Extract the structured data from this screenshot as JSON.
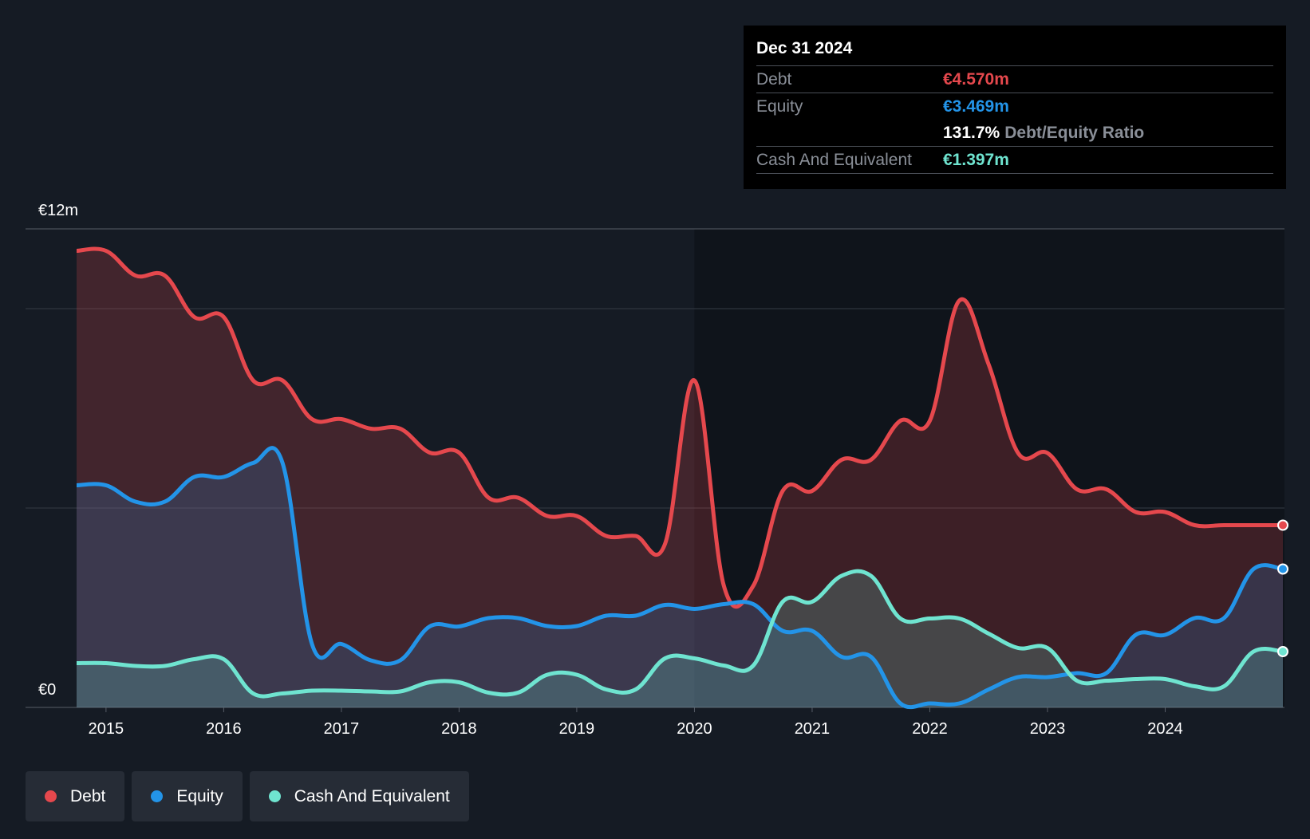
{
  "tooltip": {
    "date": "Dec 31 2024",
    "rows": [
      {
        "name": "Debt",
        "value": "€4.570m",
        "color": "#e5484d"
      },
      {
        "name": "Equity",
        "value": "€3.469m",
        "color": "#2394e8"
      },
      {
        "ratio_value": "131.7%",
        "ratio_label": "Debt/Equity Ratio"
      },
      {
        "name": "Cash And Equivalent",
        "value": "€1.397m",
        "color": "#6fe4d0"
      }
    ]
  },
  "legend": [
    {
      "label": "Debt",
      "color": "#e5484d"
    },
    {
      "label": "Equity",
      "color": "#2394e8"
    },
    {
      "label": "Cash And Equivalent",
      "color": "#6fe4d0"
    }
  ],
  "chart_data": {
    "type": "area",
    "y_axis_labels": [
      "€12m",
      "€0"
    ],
    "ylim": [
      0,
      12
    ],
    "xlim": [
      2014.75,
      2025.0
    ],
    "x_ticks": [
      2015,
      2016,
      2017,
      2018,
      2019,
      2020,
      2021,
      2022,
      2023,
      2024
    ],
    "grid": true,
    "series": [
      {
        "name": "Debt",
        "color": "#e5484d",
        "points": [
          [
            2014.75,
            11.45
          ],
          [
            2015.0,
            11.45
          ],
          [
            2015.25,
            10.83
          ],
          [
            2015.5,
            10.83
          ],
          [
            2015.75,
            9.79
          ],
          [
            2016.0,
            9.79
          ],
          [
            2016.25,
            8.2
          ],
          [
            2016.5,
            8.2
          ],
          [
            2016.75,
            7.23
          ],
          [
            2017.0,
            7.23
          ],
          [
            2017.25,
            6.99
          ],
          [
            2017.5,
            6.99
          ],
          [
            2017.75,
            6.39
          ],
          [
            2018.0,
            6.39
          ],
          [
            2018.25,
            5.26
          ],
          [
            2018.5,
            5.26
          ],
          [
            2018.75,
            4.8
          ],
          [
            2019.0,
            4.8
          ],
          [
            2019.25,
            4.3
          ],
          [
            2019.5,
            4.3
          ],
          [
            2019.75,
            4.1
          ],
          [
            2020.0,
            8.2
          ],
          [
            2020.25,
            3.05
          ],
          [
            2020.5,
            3.05
          ],
          [
            2020.75,
            5.43
          ],
          [
            2021.0,
            5.43
          ],
          [
            2021.25,
            6.21
          ],
          [
            2021.5,
            6.21
          ],
          [
            2021.75,
            7.19
          ],
          [
            2022.0,
            7.19
          ],
          [
            2022.25,
            10.2
          ],
          [
            2022.5,
            8.6
          ],
          [
            2022.75,
            6.38
          ],
          [
            2023.0,
            6.38
          ],
          [
            2023.25,
            5.47
          ],
          [
            2023.5,
            5.47
          ],
          [
            2023.75,
            4.9
          ],
          [
            2024.0,
            4.9
          ],
          [
            2024.25,
            4.57
          ],
          [
            2024.5,
            4.57
          ],
          [
            2024.75,
            4.57
          ],
          [
            2025.0,
            4.57
          ]
        ]
      },
      {
        "name": "Equity",
        "color": "#2394e8",
        "points": [
          [
            2014.75,
            5.57
          ],
          [
            2015.0,
            5.57
          ],
          [
            2015.25,
            5.16
          ],
          [
            2015.5,
            5.16
          ],
          [
            2015.75,
            5.78
          ],
          [
            2016.0,
            5.78
          ],
          [
            2016.25,
            6.13
          ],
          [
            2016.5,
            6.13
          ],
          [
            2016.75,
            1.59
          ],
          [
            2017.0,
            1.59
          ],
          [
            2017.25,
            1.18
          ],
          [
            2017.5,
            1.18
          ],
          [
            2017.75,
            2.03
          ],
          [
            2018.0,
            2.03
          ],
          [
            2018.25,
            2.24
          ],
          [
            2018.5,
            2.24
          ],
          [
            2018.75,
            2.04
          ],
          [
            2019.0,
            2.04
          ],
          [
            2019.25,
            2.3
          ],
          [
            2019.5,
            2.3
          ],
          [
            2019.75,
            2.57
          ],
          [
            2020.0,
            2.47
          ],
          [
            2020.25,
            2.59
          ],
          [
            2020.5,
            2.59
          ],
          [
            2020.75,
            1.92
          ],
          [
            2021.0,
            1.92
          ],
          [
            2021.25,
            1.27
          ],
          [
            2021.5,
            1.27
          ],
          [
            2021.75,
            0.1
          ],
          [
            2022.0,
            0.1
          ],
          [
            2022.25,
            0.1
          ],
          [
            2022.5,
            0.45
          ],
          [
            2022.75,
            0.76
          ],
          [
            2023.0,
            0.76
          ],
          [
            2023.25,
            0.86
          ],
          [
            2023.5,
            0.86
          ],
          [
            2023.75,
            1.82
          ],
          [
            2024.0,
            1.82
          ],
          [
            2024.25,
            2.24
          ],
          [
            2024.5,
            2.24
          ],
          [
            2024.75,
            3.47
          ],
          [
            2025.0,
            3.47
          ]
        ]
      },
      {
        "name": "Cash And Equivalent",
        "color": "#6fe4d0",
        "points": [
          [
            2014.75,
            1.11
          ],
          [
            2015.0,
            1.11
          ],
          [
            2015.25,
            1.04
          ],
          [
            2015.5,
            1.04
          ],
          [
            2015.75,
            1.21
          ],
          [
            2016.0,
            1.21
          ],
          [
            2016.25,
            0.35
          ],
          [
            2016.5,
            0.35
          ],
          [
            2016.75,
            0.42
          ],
          [
            2017.0,
            0.42
          ],
          [
            2017.25,
            0.4
          ],
          [
            2017.5,
            0.4
          ],
          [
            2017.75,
            0.63
          ],
          [
            2018.0,
            0.63
          ],
          [
            2018.25,
            0.37
          ],
          [
            2018.5,
            0.37
          ],
          [
            2018.75,
            0.82
          ],
          [
            2019.0,
            0.82
          ],
          [
            2019.25,
            0.45
          ],
          [
            2019.5,
            0.45
          ],
          [
            2019.75,
            1.23
          ],
          [
            2020.0,
            1.23
          ],
          [
            2020.25,
            1.05
          ],
          [
            2020.5,
            1.05
          ],
          [
            2020.75,
            2.65
          ],
          [
            2021.0,
            2.65
          ],
          [
            2021.25,
            3.3
          ],
          [
            2021.5,
            3.3
          ],
          [
            2021.75,
            2.23
          ],
          [
            2022.0,
            2.23
          ],
          [
            2022.25,
            2.23
          ],
          [
            2022.5,
            1.85
          ],
          [
            2022.75,
            1.49
          ],
          [
            2023.0,
            1.49
          ],
          [
            2023.25,
            0.67
          ],
          [
            2023.5,
            0.67
          ],
          [
            2023.75,
            0.71
          ],
          [
            2024.0,
            0.71
          ],
          [
            2024.25,
            0.53
          ],
          [
            2024.5,
            0.53
          ],
          [
            2024.75,
            1.4
          ],
          [
            2025.0,
            1.4
          ]
        ]
      }
    ]
  }
}
